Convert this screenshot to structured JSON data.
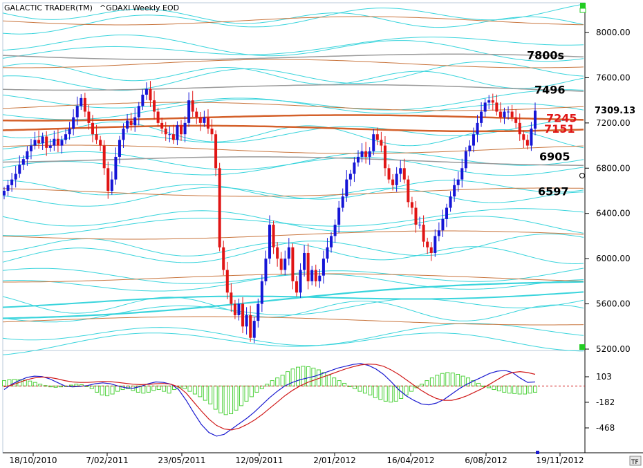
{
  "header": {
    "app_title": "GALACTIC TRADER(TM)",
    "instrument": "^GDAXI Weekly EOD"
  },
  "toolbar": {
    "tf_label": "TF"
  },
  "colors": {
    "up_candle": "#1515d6",
    "down_candle": "#e01515",
    "cycle_cyan": "#39d4dc",
    "cycle_brown": "#c8743c",
    "cycle_gray": "#9a9a9a",
    "level_orange": "#d4602a",
    "histogram": "#4cd13a",
    "fast_line": "#1a1ad0",
    "slow_line": "#d01a1a",
    "corner_marker": "#22cc22"
  },
  "chart_data": [
    {
      "type": "candlestick",
      "title": "",
      "xlabel": "",
      "ylabel": "",
      "ylim": [
        5200,
        8200
      ],
      "y_ticks": [
        "8000.00",
        "7600.00",
        "7200.00",
        "6800.00",
        "6400.00",
        "6000.00",
        "5600.00",
        "5200.00"
      ],
      "x_ticks": [
        "18/10/2010",
        "7/02/2011",
        "23/05/2011",
        "12/09/2011",
        "2/01/2012",
        "16/04/2012",
        "6/08/2012",
        "19/11/2012"
      ],
      "grid": false,
      "last_price": "7309.13",
      "level_labels": [
        {
          "text": "7800s",
          "value": 7800,
          "color": "#000000"
        },
        {
          "text": "7496",
          "value": 7496,
          "color": "#000000"
        },
        {
          "text": "7245",
          "value": 7245,
          "color": "#e01515"
        },
        {
          "text": "7151",
          "value": 7151,
          "color": "#e01515"
        },
        {
          "text": "6905",
          "value": 6905,
          "color": "#000000"
        },
        {
          "text": "6597",
          "value": 6597,
          "color": "#000000"
        }
      ],
      "close_series": [
        6600,
        6650,
        6700,
        6750,
        6830,
        6880,
        6950,
        7000,
        7050,
        7020,
        7080,
        6980,
        7000,
        7060,
        7000,
        7050,
        7100,
        7150,
        7250,
        7350,
        7420,
        7300,
        7200,
        7100,
        7050,
        7000,
        6800,
        6600,
        6700,
        6900,
        7050,
        7150,
        7220,
        7180,
        7250,
        7350,
        7450,
        7500,
        7400,
        7300,
        7200,
        7150,
        7100,
        7100,
        7050,
        7180,
        7100,
        7200,
        7400,
        7300,
        7250,
        7200,
        7250,
        7150,
        7100,
        6800,
        6100,
        5900,
        5700,
        5600,
        5500,
        5600,
        5400,
        5500,
        5300,
        5450,
        5600,
        5800,
        6000,
        6300,
        6100,
        6000,
        5900,
        6000,
        6100,
        5800,
        5700,
        5900,
        6050,
        5800,
        5900,
        5800,
        5850,
        6000,
        6100,
        6200,
        6300,
        6450,
        6550,
        6700,
        6750,
        6850,
        6900,
        6950,
        6900,
        6950,
        7100,
        7050,
        7000,
        6800,
        6700,
        6650,
        6750,
        6800,
        6700,
        6500,
        6450,
        6300,
        6300,
        6150,
        6100,
        6050,
        6200,
        6250,
        6350,
        6450,
        6550,
        6650,
        6700,
        6800,
        6950,
        7000,
        7100,
        7200,
        7300,
        7380,
        7400,
        7380,
        7300,
        7250,
        7300,
        7300,
        7250,
        7200,
        7100,
        7050,
        7000,
        7150,
        7309
      ]
    },
    {
      "type": "bar",
      "title": "",
      "xlabel": "",
      "ylabel": "",
      "ylim": [
        -600,
        300
      ],
      "y_ticks": [
        "103",
        "-182",
        "-468"
      ],
      "zero_line_dashed": true,
      "histogram_series": [
        60,
        70,
        75,
        70,
        65,
        55,
        40,
        20,
        5,
        -10,
        -15,
        -10,
        -5,
        10,
        20,
        15,
        0,
        -30,
        -70,
        -100,
        -110,
        -90,
        -60,
        -40,
        -30,
        -50,
        -70,
        -80,
        -70,
        -50,
        -40,
        -60,
        -80,
        -40,
        -20,
        -30,
        -60,
        -90,
        -120,
        -160,
        -200,
        -260,
        -300,
        -320,
        -310,
        -270,
        -220,
        -170,
        -120,
        -70,
        -30,
        20,
        60,
        90,
        120,
        160,
        190,
        210,
        220,
        215,
        200,
        180,
        150,
        120,
        90,
        60,
        30,
        0,
        -30,
        -60,
        -80,
        -100,
        -130,
        -150,
        -170,
        -180,
        -170,
        -140,
        -100,
        -60,
        -20,
        20,
        60,
        90,
        120,
        140,
        150,
        145,
        130,
        110,
        90,
        60,
        30,
        0,
        -20,
        -40,
        -55,
        -70,
        -80,
        -85,
        -90,
        -90,
        -80,
        -70
      ],
      "fast_line_series": [
        -40,
        20,
        60,
        95,
        110,
        105,
        80,
        40,
        0,
        -10,
        -5,
        5,
        25,
        35,
        25,
        0,
        -20,
        -25,
        -5,
        25,
        45,
        40,
        20,
        -40,
        -160,
        -300,
        -430,
        -520,
        -560,
        -540,
        -480,
        -420,
        -360,
        -290,
        -210,
        -130,
        -60,
        0,
        40,
        70,
        90,
        110,
        140,
        170,
        200,
        220,
        240,
        250,
        230,
        190,
        130,
        50,
        -40,
        -110,
        -160,
        -200,
        -210,
        -190,
        -150,
        -90,
        -30,
        20,
        60,
        100,
        140,
        165,
        175,
        150,
        90,
        40,
        45
      ],
      "slow_line_series": [
        -10,
        10,
        40,
        70,
        90,
        100,
        95,
        80,
        60,
        45,
        40,
        40,
        45,
        50,
        48,
        40,
        30,
        20,
        15,
        18,
        25,
        28,
        20,
        -10,
        -80,
        -180,
        -280,
        -370,
        -440,
        -480,
        -490,
        -470,
        -430,
        -380,
        -320,
        -250,
        -180,
        -110,
        -50,
        0,
        40,
        70,
        100,
        130,
        160,
        190,
        215,
        235,
        245,
        240,
        220,
        180,
        130,
        70,
        10,
        -50,
        -100,
        -140,
        -160,
        -160,
        -140,
        -110,
        -70,
        -30,
        20,
        70,
        120,
        150,
        160,
        150,
        130
      ]
    }
  ]
}
